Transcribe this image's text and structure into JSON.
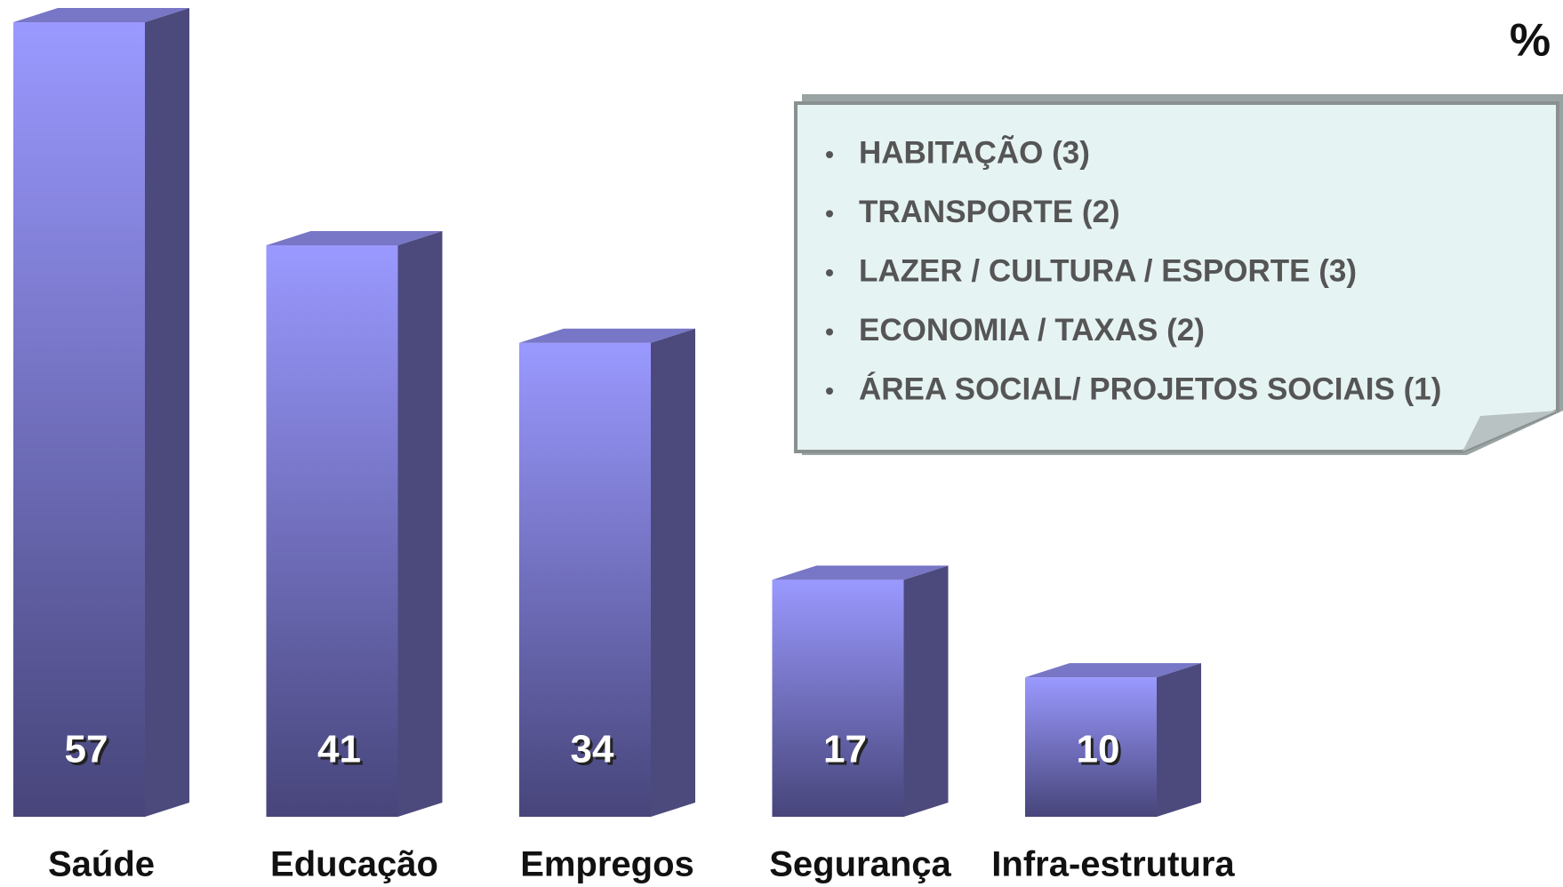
{
  "chart_data": {
    "type": "bar",
    "categories": [
      "Saúde",
      "Educação",
      "Empregos",
      "Segurança",
      "Infra-estrutura"
    ],
    "values": [
      57,
      41,
      34,
      17,
      10
    ],
    "unit": "%",
    "color": "#9a99ff",
    "annotations": [
      "HABITAÇÃO (3)",
      "TRANSPORTE (2)",
      "LAZER / CULTURA / ESPORTE (3)",
      "ECONOMIA / TAXAS (2)",
      "ÁREA SOCIAL/ PROJETOS SOCIAIS (1)"
    ]
  }
}
